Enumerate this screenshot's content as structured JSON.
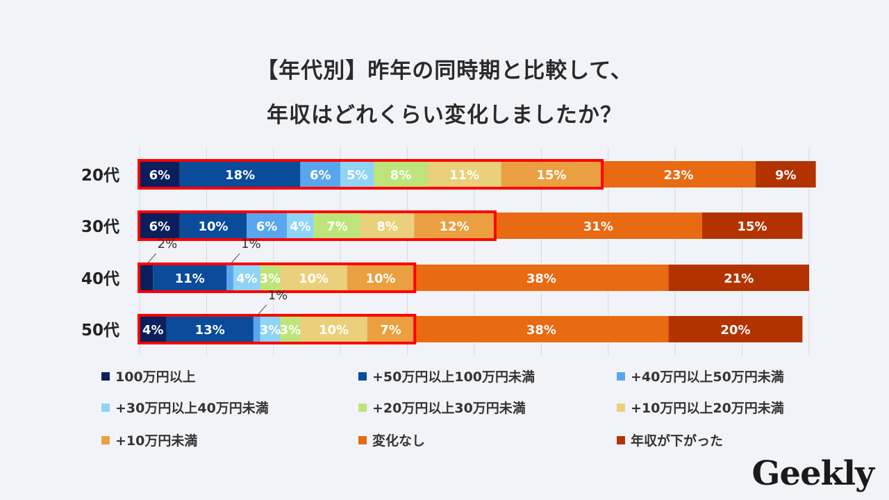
{
  "chart_data": {
    "type": "bar",
    "orientation": "horizontal",
    "stacked": true,
    "title_lines": [
      "【年代別】昨年の同時期と比較して、",
      "年収はどれくらい変化しましたか？"
    ],
    "categories": [
      "20代",
      "30代",
      "40代",
      "50代"
    ],
    "series": [
      {
        "name": "100万円以上",
        "color": "#0b1f5c",
        "values": [
          6,
          6,
          2,
          4
        ],
        "labels": [
          "6%",
          "6%",
          "2%",
          "4%"
        ]
      },
      {
        "name": "+50万円以上100万円未満",
        "color": "#0a4b9a",
        "values": [
          18,
          10,
          11,
          13
        ],
        "labels": [
          "18%",
          "10%",
          "11%",
          "13%"
        ]
      },
      {
        "name": "+40万円以上50万円未満",
        "color": "#5aa6ee",
        "values": [
          6,
          6,
          1,
          1
        ],
        "labels": [
          "6%",
          "6%",
          "1%",
          "1%"
        ]
      },
      {
        "name": "+30万円以上40万円未満",
        "color": "#8fd3f5",
        "values": [
          5,
          4,
          4,
          3
        ],
        "labels": [
          "5%",
          "4%",
          "4%",
          "3%"
        ]
      },
      {
        "name": "+20万円以上30万円未満",
        "color": "#bde47a",
        "values": [
          8,
          7,
          3,
          3
        ],
        "labels": [
          "8%",
          "7%",
          "3%",
          "3%"
        ]
      },
      {
        "name": "+10万円以上20万円未満",
        "color": "#ead07a",
        "values": [
          11,
          8,
          10,
          10
        ],
        "labels": [
          "11%",
          "8%",
          "10%",
          "10%"
        ]
      },
      {
        "name": "+10万円未満",
        "color": "#eaa040",
        "values": [
          15,
          12,
          10,
          7
        ],
        "labels": [
          "15%",
          "12%",
          "10%",
          "7%"
        ]
      },
      {
        "name": "変化なし",
        "color": "#e86a12",
        "values": [
          23,
          31,
          38,
          38
        ],
        "labels": [
          "23%",
          "31%",
          "38%",
          "38%"
        ]
      },
      {
        "name": "年収が下がった",
        "color": "#b33300",
        "values": [
          9,
          15,
          21,
          20
        ],
        "labels": [
          "9%",
          "15%",
          "21%",
          "20%"
        ]
      }
    ],
    "highlight_series_count": 7,
    "highlight_color": "#ff0000",
    "xlim": [
      0,
      100
    ],
    "grid": true,
    "legend_position": "bottom"
  },
  "brand": {
    "logo_text": "Geekly"
  }
}
